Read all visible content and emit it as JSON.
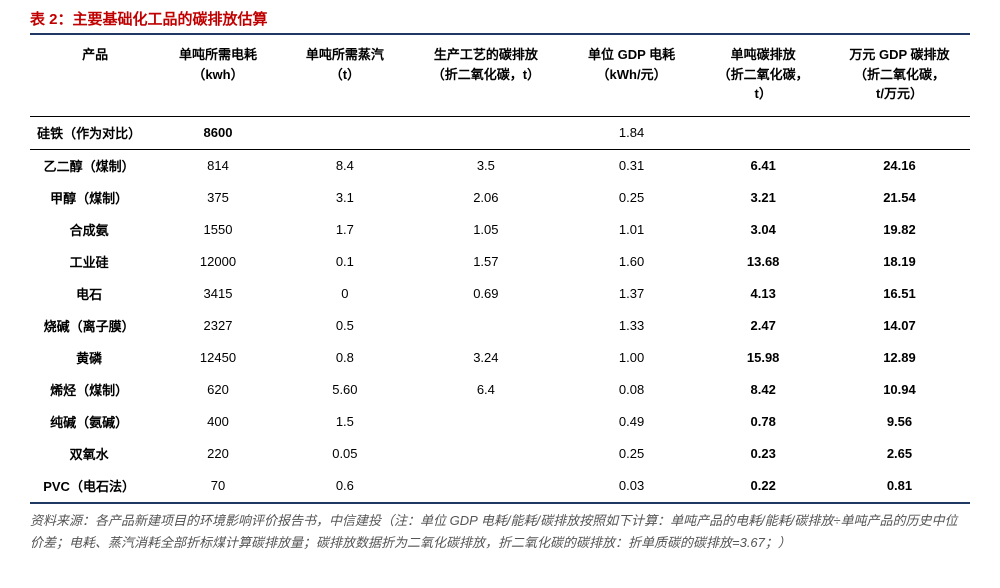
{
  "title": "表 2：主要基础化工品的碳排放估算",
  "columns": [
    "产品",
    "单吨所需电耗\n（kwh）",
    "单吨所需蒸汽\n（t）",
    "生产工艺的碳排放\n（折二氧化碳，t）",
    "单位 GDP 电耗\n（kWh/元）",
    "单吨碳排放\n（折二氧化碳，\nt）",
    "万元 GDP 碳排放\n（折二氧化碳，\nt/万元）"
  ],
  "rows": [
    {
      "cells": [
        "硅铁（作为对比）",
        "8600",
        "",
        "",
        "1.84",
        "",
        ""
      ],
      "first": true
    },
    {
      "cells": [
        "乙二醇（煤制）",
        "814",
        "8.4",
        "3.5",
        "0.31",
        "6.41",
        "24.16"
      ]
    },
    {
      "cells": [
        "甲醇（煤制）",
        "375",
        "3.1",
        "2.06",
        "0.25",
        "3.21",
        "21.54"
      ]
    },
    {
      "cells": [
        "合成氨",
        "1550",
        "1.7",
        "1.05",
        "1.01",
        "3.04",
        "19.82"
      ]
    },
    {
      "cells": [
        "工业硅",
        "12000",
        "0.1",
        "1.57",
        "1.60",
        "13.68",
        "18.19"
      ]
    },
    {
      "cells": [
        "电石",
        "3415",
        "0",
        "0.69",
        "1.37",
        "4.13",
        "16.51"
      ]
    },
    {
      "cells": [
        "烧碱（离子膜）",
        "2327",
        "0.5",
        "",
        "1.33",
        "2.47",
        "14.07"
      ]
    },
    {
      "cells": [
        "黄磷",
        "12450",
        "0.8",
        "3.24",
        "1.00",
        "15.98",
        "12.89"
      ]
    },
    {
      "cells": [
        "烯烃（煤制）",
        "620",
        "5.60",
        "6.4",
        "0.08",
        "8.42",
        "10.94"
      ]
    },
    {
      "cells": [
        "纯碱（氨碱）",
        "400",
        "1.5",
        "",
        "0.49",
        "0.78",
        "9.56"
      ]
    },
    {
      "cells": [
        "双氧水",
        "220",
        "0.05",
        "",
        "0.25",
        "0.23",
        "2.65"
      ]
    },
    {
      "cells": [
        "PVC（电石法）",
        "70",
        "0.6",
        "",
        "0.03",
        "0.22",
        "0.81"
      ]
    }
  ],
  "boldCols": [
    5,
    6
  ],
  "source": "资料来源：各产品新建项目的环境影响评价报告书，中信建投（注：单位 GDP 电耗/能耗/碳排放按照如下计算：单吨产品的电耗/能耗/碳排放÷单吨产品的历史中位价差；电耗、蒸汽消耗全部折标煤计算碳排放量；碳排放数据折为二氧化碳排放，折二氧化碳的碳排放：折单质碳的碳排放=3.67；）",
  "colors": {
    "title": "#c00000",
    "border": "#1f3864",
    "text": "#000000",
    "sourceText": "#555555",
    "background": "#ffffff"
  },
  "typography": {
    "titleSize": 15,
    "headerSize": 13,
    "bodySize": 13,
    "sourceSize": 13
  }
}
